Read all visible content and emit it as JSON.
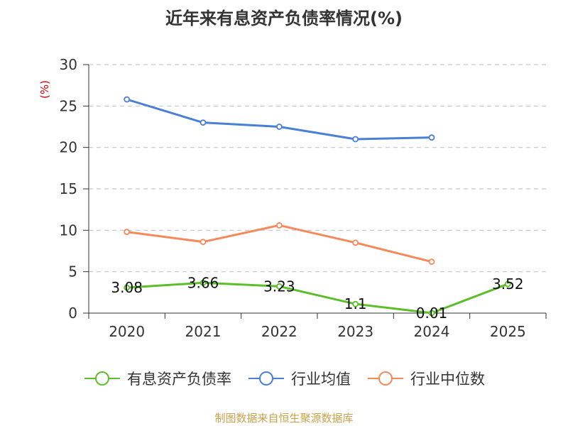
{
  "chart_data": {
    "type": "line",
    "title": "近年来有息资产负债率情况(%)",
    "y_unit": "(%)",
    "categories": [
      "2020",
      "2021",
      "2022",
      "2023",
      "2024",
      "2025"
    ],
    "ylim": [
      0,
      30
    ],
    "y_ticks": [
      "0",
      "5",
      "10",
      "15",
      "20",
      "25",
      "30"
    ],
    "grid": true,
    "legend_position": "bottom",
    "series": [
      {
        "name": "有息资产负债率",
        "color": "#5cbf2a",
        "values": [
          3.08,
          3.66,
          3.23,
          1.1,
          0.01,
          3.52
        ],
        "labels": [
          "3.08",
          "3.66",
          "3.23",
          "1.1",
          "0.01",
          "3.52"
        ]
      },
      {
        "name": "行业均值",
        "color": "#4a7fd6",
        "values": [
          25.8,
          23.0,
          22.5,
          21.0,
          21.2,
          null
        ]
      },
      {
        "name": "行业中位数",
        "color": "#f5895a",
        "values": [
          9.8,
          8.6,
          10.6,
          8.5,
          6.2,
          null
        ]
      }
    ]
  },
  "source_note": "制图数据来自恒生聚源数据库"
}
